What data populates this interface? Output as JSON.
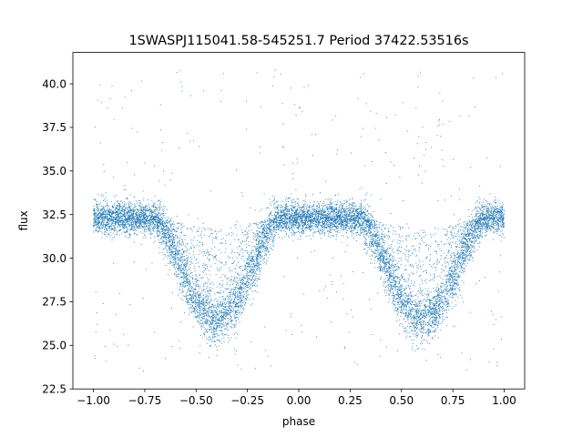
{
  "chart_data": {
    "type": "scatter",
    "title": "1SWASPJ115041.58-545251.7 Period 37422.53516s",
    "xlabel": "phase",
    "ylabel": "flux",
    "xlim": [
      -1.1,
      1.1
    ],
    "ylim": [
      22.5,
      41.8
    ],
    "xticks": [
      "−1.00",
      "−0.75",
      "−0.50",
      "−0.25",
      "0.00",
      "0.25",
      "0.50",
      "0.75",
      "1.00"
    ],
    "xtick_values": [
      -1.0,
      -0.75,
      -0.5,
      -0.25,
      0.0,
      0.25,
      0.5,
      0.75,
      1.0
    ],
    "yticks": [
      "22.5",
      "25.0",
      "27.5",
      "30.0",
      "32.5",
      "35.0",
      "37.5",
      "40.0"
    ],
    "ytick_values": [
      22.5,
      25.0,
      27.5,
      30.0,
      32.5,
      35.0,
      37.5,
      40.0
    ],
    "grid": false,
    "legend": "none",
    "series": [
      {
        "color": "#1f77b4",
        "phase_range": [
          -1.0,
          1.0
        ],
        "baseline_flux": 32.3,
        "baseline_scatter": 0.45,
        "eclipse_centers": [
          -0.4,
          0.6
        ],
        "eclipse_min_flux": 26.5,
        "eclipse_half_width": 0.3,
        "outlier_range": [
          23.3,
          40.8
        ],
        "points_approx": 11000
      }
    ]
  }
}
